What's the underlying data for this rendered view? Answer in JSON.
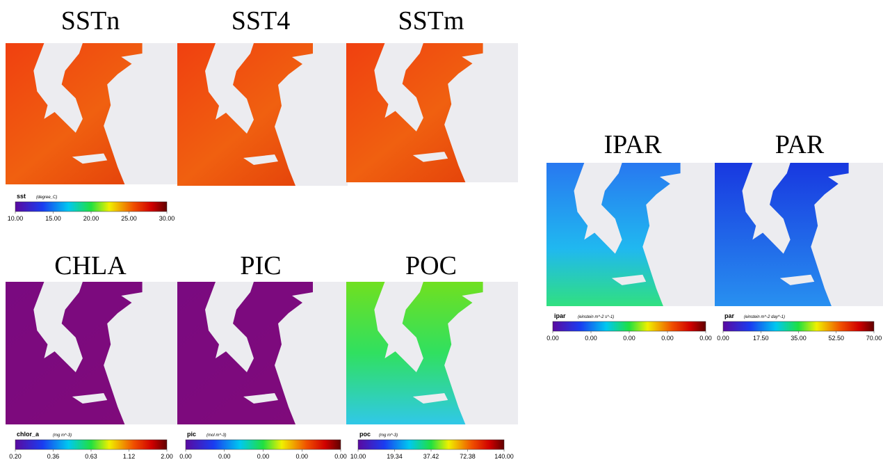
{
  "panels": [
    {
      "title": "SSTn"
    },
    {
      "title": "SST4"
    },
    {
      "title": "SSTm"
    },
    {
      "title": "CHLA"
    },
    {
      "title": "PIC"
    },
    {
      "title": "POC"
    },
    {
      "title": "IPAR"
    },
    {
      "title": "PAR"
    }
  ],
  "colorbars": [
    {
      "variable": "sst",
      "units": "(degree_C)",
      "ticks": [
        "10.00",
        "15.00",
        "20.00",
        "25.00",
        "30.00"
      ]
    },
    {
      "variable": "chlor_a",
      "units": "(mg m^-3)",
      "ticks": [
        "0.20",
        "0.36",
        "0.63",
        "1.12",
        "2.00"
      ]
    },
    {
      "variable": "pic",
      "units": "(mol m^-3)",
      "ticks": [
        "0.00",
        "0.00",
        "0.00",
        "0.00",
        "0.00"
      ]
    },
    {
      "variable": "poc",
      "units": "(mg m^-3)",
      "ticks": [
        "10.00",
        "19.34",
        "37.42",
        "72.38",
        "140.00"
      ]
    },
    {
      "variable": "ipar",
      "units": "(einstein m^-2 s^-1)",
      "ticks": [
        "0.00",
        "0.00",
        "0.00",
        "0.00",
        "0.00"
      ]
    },
    {
      "variable": "par",
      "units": "(einstein m^-2 day^-1)",
      "ticks": [
        "0.00",
        "17.50",
        "35.00",
        "52.50",
        "70.00"
      ]
    }
  ]
}
